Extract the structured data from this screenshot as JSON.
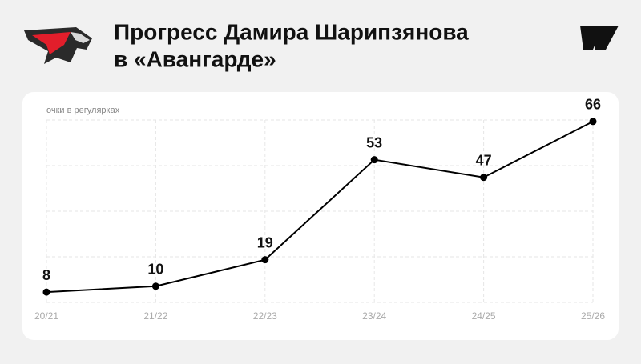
{
  "chart_data": {
    "type": "line",
    "title": [
      "Прогресс Дамира Шарипзянова",
      "в «Авангарде»"
    ],
    "y_label": "очки в регулярках",
    "categories": [
      "20/21",
      "21/22",
      "22/23",
      "23/24",
      "24/25",
      "25/26"
    ],
    "values": [
      8,
      10,
      19,
      53,
      47,
      66
    ],
    "color": "#000000",
    "ylim": [
      4.5,
      66.5
    ],
    "grid": true
  }
}
